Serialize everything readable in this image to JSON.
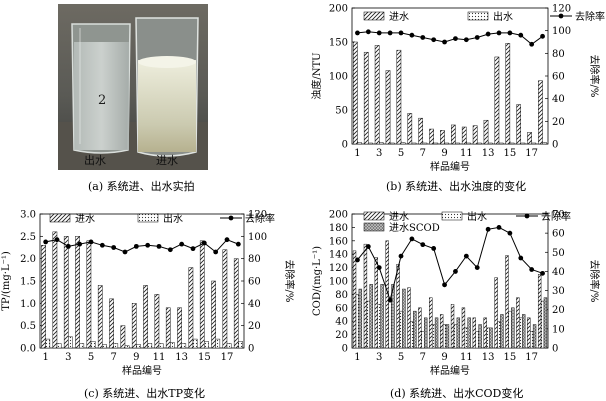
{
  "figure": {
    "captions": {
      "a": "(a) 系统进、出水实拍",
      "b": "(b) 系统进、出水浊度的变化",
      "c": "(c) 系统进、出水TP变化",
      "d": "(d) 系统进、出水COD变化"
    },
    "photo_labels": {
      "beaker_out": "出水",
      "beaker_in": "进水",
      "beaker_number": "2"
    }
  },
  "chart_data": [
    {
      "id": "b",
      "type": "bar",
      "title": "",
      "xlabel": "样品编号",
      "ylabel": "浊度/NTU",
      "y2label": "去除率/%",
      "x": [
        1,
        2,
        3,
        4,
        5,
        6,
        7,
        8,
        9,
        10,
        11,
        12,
        13,
        14,
        15,
        16,
        17,
        18
      ],
      "x_ticks": [
        1,
        3,
        5,
        7,
        9,
        11,
        13,
        15,
        17
      ],
      "ylim": [
        0,
        200
      ],
      "y_ticks": [
        0,
        50,
        100,
        150,
        200
      ],
      "y2lim": [
        0,
        120
      ],
      "y2_ticks": [
        0,
        20,
        40,
        60,
        80,
        100,
        120
      ],
      "legend": [
        "进水",
        "出水",
        "去除率"
      ],
      "series": [
        {
          "name": "进水",
          "values": [
            150,
            135,
            145,
            108,
            138,
            45,
            38,
            22,
            20,
            28,
            25,
            27,
            35,
            128,
            148,
            58,
            17,
            93
          ]
        },
        {
          "name": "出水",
          "values": [
            2,
            1.5,
            2,
            1.5,
            2,
            1.5,
            1.5,
            1.5,
            1.5,
            1.5,
            1.5,
            1.5,
            1.5,
            1.5,
            1.5,
            1.5,
            1.5,
            2
          ]
        },
        {
          "name": "去除率",
          "axis": "right",
          "values": [
            98,
            99,
            98,
            98,
            98,
            96,
            94,
            92,
            90,
            93,
            92,
            94,
            97,
            98,
            98,
            96,
            88,
            95
          ]
        }
      ]
    },
    {
      "id": "c",
      "type": "bar",
      "title": "",
      "xlabel": "样品编号",
      "ylabel": "TP/(mg·L⁻¹)",
      "y2label": "去除率/%",
      "x": [
        1,
        2,
        3,
        4,
        5,
        6,
        7,
        8,
        9,
        10,
        11,
        12,
        13,
        14,
        15,
        16,
        17,
        18
      ],
      "x_ticks": [
        1,
        3,
        5,
        7,
        9,
        11,
        13,
        15,
        17
      ],
      "ylim": [
        0,
        3.0
      ],
      "y_ticks": [
        0,
        0.5,
        1.0,
        1.5,
        2.0,
        2.5,
        3.0
      ],
      "y2lim": [
        0,
        120
      ],
      "y2_ticks": [
        0,
        20,
        40,
        60,
        80,
        100,
        120
      ],
      "legend": [
        "进水",
        "出水",
        "去除率"
      ],
      "series": [
        {
          "name": "进水",
          "values": [
            2.3,
            2.6,
            2.5,
            2.5,
            2.4,
            1.4,
            1.1,
            0.5,
            1.0,
            1.4,
            1.2,
            0.9,
            0.9,
            1.8,
            2.4,
            1.5,
            2.2,
            2.0
          ]
        },
        {
          "name": "出水",
          "values": [
            0.2,
            0.1,
            0.25,
            0.1,
            0.15,
            0.08,
            0.1,
            0.05,
            0.08,
            0.1,
            0.1,
            0.12,
            0.1,
            0.2,
            0.15,
            0.2,
            0.1,
            0.15
          ]
        },
        {
          "name": "去除率",
          "axis": "right",
          "values": [
            95,
            97,
            91,
            93,
            95,
            92,
            90,
            86,
            91,
            92,
            91,
            88,
            93,
            89,
            94,
            86,
            97,
            93
          ]
        }
      ]
    },
    {
      "id": "d",
      "type": "bar",
      "title": "",
      "xlabel": "样品编号",
      "ylabel": "COD/(mg·L⁻¹)",
      "y2label": "去除率/%",
      "x": [
        1,
        2,
        3,
        4,
        5,
        6,
        7,
        8,
        9,
        10,
        11,
        12,
        13,
        14,
        15,
        16,
        17,
        18
      ],
      "x_ticks": [
        1,
        3,
        5,
        7,
        9,
        11,
        13,
        15,
        17
      ],
      "ylim": [
        0,
        200
      ],
      "y_ticks": [
        0,
        20,
        40,
        60,
        80,
        100,
        120,
        140,
        160,
        180,
        200
      ],
      "y2lim": [
        0,
        70
      ],
      "y2_ticks": [
        0,
        10,
        20,
        30,
        40,
        50,
        60,
        70
      ],
      "legend": [
        "进水",
        "出水",
        "去除率",
        "进水SCOD"
      ],
      "series": [
        {
          "name": "进水",
          "values": [
            145,
            155,
            135,
            160,
            125,
            90,
            60,
            75,
            50,
            65,
            60,
            45,
            45,
            105,
            138,
            75,
            45,
            110
          ]
        },
        {
          "name": "出水",
          "values": [
            80,
            70,
            65,
            75,
            55,
            40,
            25,
            35,
            35,
            35,
            30,
            25,
            30,
            40,
            55,
            45,
            25,
            70
          ]
        },
        {
          "name": "进水SCOD",
          "values": [
            88,
            95,
            95,
            95,
            88,
            55,
            45,
            45,
            35,
            45,
            45,
            35,
            30,
            50,
            60,
            50,
            35,
            75
          ]
        },
        {
          "name": "去除率",
          "axis": "right",
          "values": [
            46,
            53,
            42,
            25,
            48,
            57,
            54,
            52,
            33,
            40,
            48,
            42,
            62,
            63,
            60,
            47,
            41,
            39
          ]
        }
      ]
    }
  ]
}
